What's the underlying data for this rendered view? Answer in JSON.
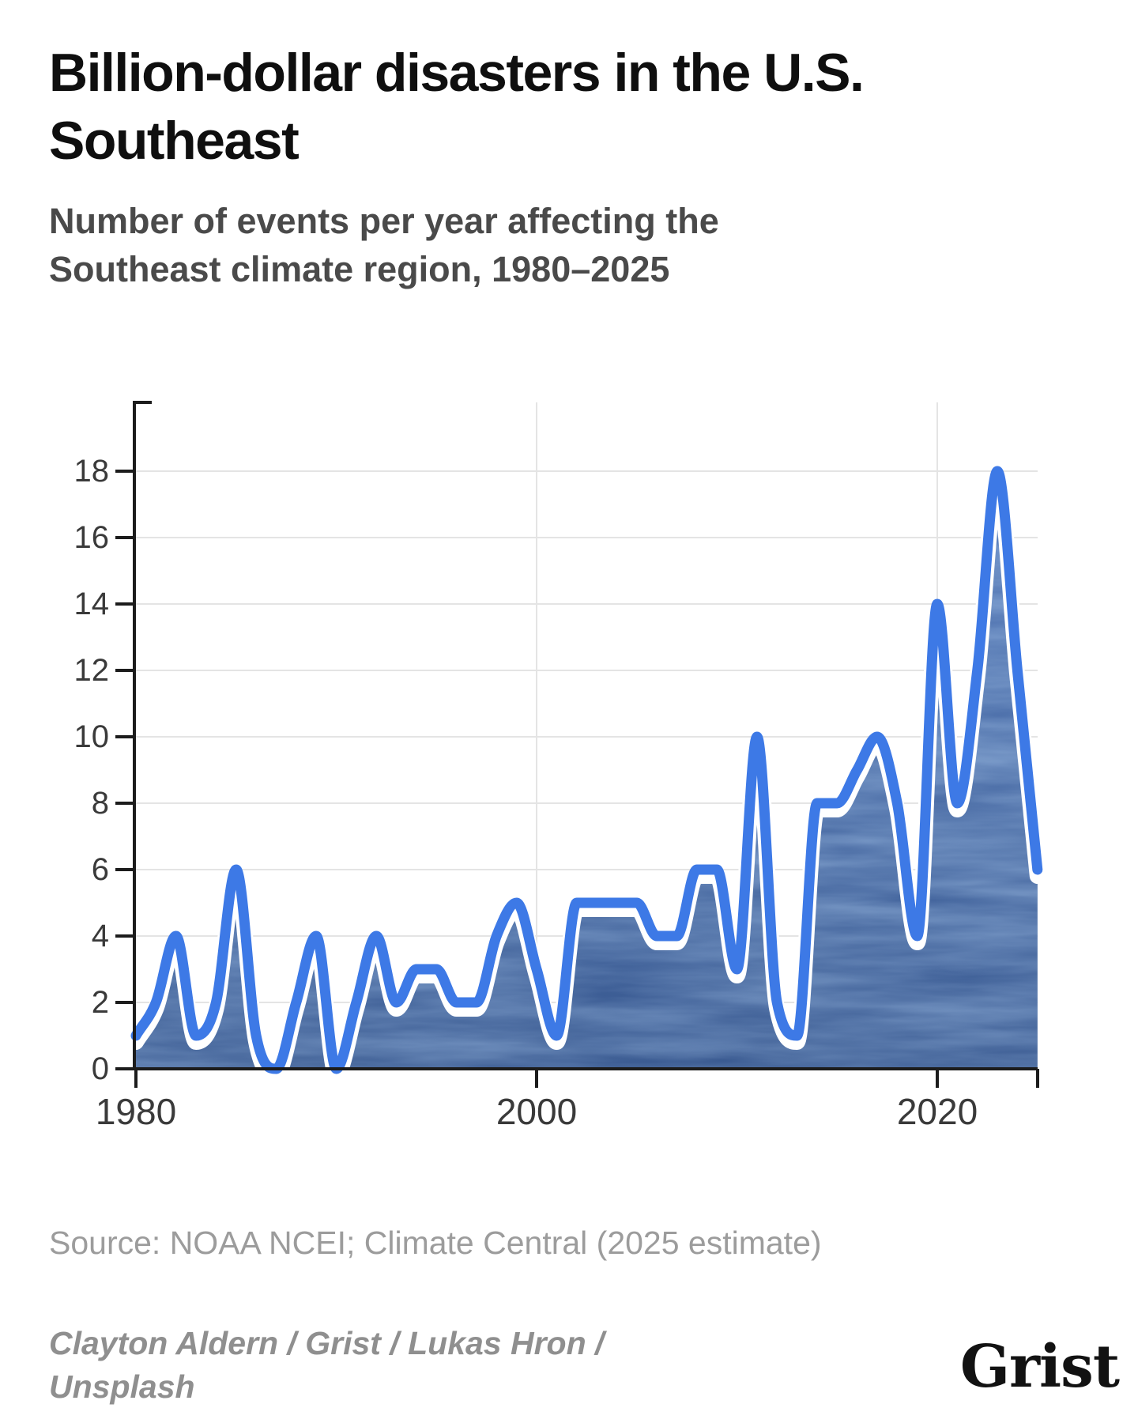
{
  "title": "Billion-dollar disasters in the U.S. Southeast",
  "subtitle": "Number of events per year affecting the Southeast climate region, 1980–2025",
  "source": "Source: NOAA NCEI; Climate Central (2025 estimate)",
  "credit": "Clayton Aldern / Grist / Lukas Hron / Unsplash",
  "logo_text": "Grist",
  "colors": {
    "line": "#3d79e6",
    "line_casing": "#ffffff",
    "fill_base_top": "#5d83c4",
    "fill_base_bottom": "#44659c",
    "fill_streak": "#5480c7",
    "axis": "#1c1c1c",
    "grid": "#e4e4e4",
    "tick_label": "#3a3a3a"
  },
  "chart_data": {
    "type": "area",
    "title": "Billion-dollar disasters in the U.S. Southeast",
    "xlabel": "",
    "ylabel": "",
    "x": [
      1980,
      1981,
      1982,
      1983,
      1984,
      1985,
      1986,
      1987,
      1988,
      1989,
      1990,
      1991,
      1992,
      1993,
      1994,
      1995,
      1996,
      1997,
      1998,
      1999,
      2000,
      2001,
      2002,
      2003,
      2004,
      2005,
      2006,
      2007,
      2008,
      2009,
      2010,
      2011,
      2012,
      2013,
      2014,
      2015,
      2016,
      2017,
      2018,
      2019,
      2020,
      2021,
      2022,
      2023,
      2024,
      2025
    ],
    "values": [
      1,
      2,
      4,
      1,
      2,
      6,
      1,
      0,
      2,
      4,
      0,
      2,
      4,
      2,
      3,
      3,
      2,
      2,
      4,
      5,
      3,
      1,
      5,
      5,
      5,
      5,
      4,
      4,
      6,
      6,
      3,
      10,
      2,
      1,
      8,
      8,
      9,
      10,
      8,
      4,
      14,
      8,
      12,
      18,
      12,
      6
    ],
    "ylim": [
      0,
      20
    ],
    "yticks": [
      0,
      2,
      4,
      6,
      8,
      10,
      12,
      14,
      16,
      18
    ],
    "xticks": [
      1980,
      2000,
      2020
    ],
    "grid": true,
    "legend": false,
    "smoothing": "monotone-cubic",
    "notes": "2025 value is an estimate per Climate Central"
  }
}
